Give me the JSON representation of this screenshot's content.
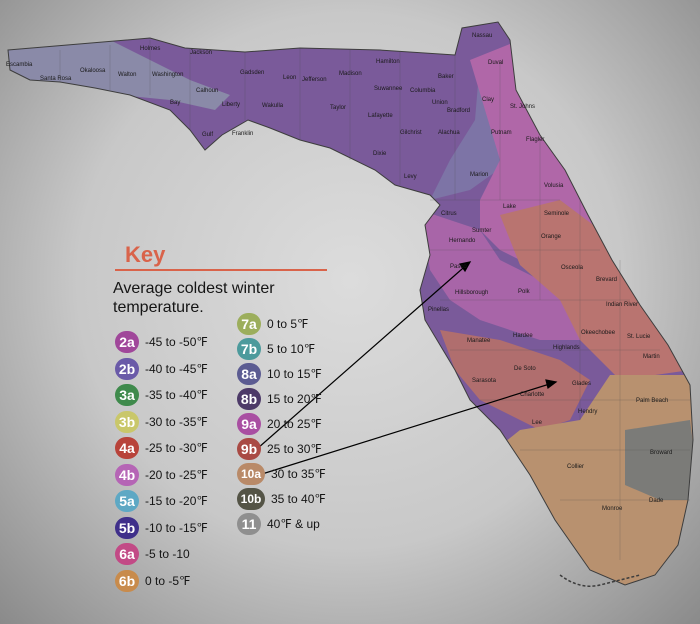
{
  "key": {
    "title": "Key",
    "subtitle": "Average coldest winter temperature.",
    "zones": [
      {
        "zone": "2a",
        "range": "-45 to -50℉",
        "color": "#a0479a"
      },
      {
        "zone": "2b",
        "range": "-40 to -45℉",
        "color": "#6a5aa8"
      },
      {
        "zone": "3a",
        "range": "-35 to -40℉",
        "color": "#3f8a4c"
      },
      {
        "zone": "3b",
        "range": "-30 to -35℉",
        "color": "#c9c76a"
      },
      {
        "zone": "4a",
        "range": "-25 to -30℉",
        "color": "#b8433a"
      },
      {
        "zone": "4b",
        "range": "-20 to -25℉",
        "color": "#b565b5"
      },
      {
        "zone": "5a",
        "range": "-15 to -20℉",
        "color": "#5ea8c4"
      },
      {
        "zone": "5b",
        "range": "-10 to -15℉",
        "color": "#3f2f8a"
      },
      {
        "zone": "6a",
        "range": "-5 to -10",
        "color": "#c24a86"
      },
      {
        "zone": "6b",
        "range": "0 to -5℉",
        "color": "#c88b4c"
      },
      {
        "zone": "7a",
        "range": "0 to 5℉",
        "color": "#9cae5c"
      },
      {
        "zone": "7b",
        "range": "5 to 10℉",
        "color": "#4c9a9c"
      },
      {
        "zone": "8a",
        "range": "10 to 15℉",
        "color": "#5c5c92"
      },
      {
        "zone": "8b",
        "range": "15 to 20℉",
        "color": "#4d3a68"
      },
      {
        "zone": "9a",
        "range": "20 to 25℉",
        "color": "#a94fa2"
      },
      {
        "zone": "9b",
        "range": "25 to 30℉",
        "color": "#a94a44"
      },
      {
        "zone": "10a",
        "range": "30 to 35℉",
        "color": "#b98a68"
      },
      {
        "zone": "10b",
        "range": "35 to 40℉",
        "color": "#545446"
      },
      {
        "zone": "11",
        "range": "40℉ & up",
        "color": "#8f8f8f"
      }
    ]
  },
  "counties": [
    "Escambia",
    "Santa Rosa",
    "Okaloosa",
    "Walton",
    "Holmes",
    "Washington",
    "Jackson",
    "Calhoun",
    "Bay",
    "Gulf",
    "Liberty",
    "Franklin",
    "Gadsden",
    "Wakulla",
    "Leon",
    "Jefferson",
    "Madison",
    "Taylor",
    "Hamilton",
    "Suwannee",
    "Lafayette",
    "Columbia",
    "Baker",
    "Nassau",
    "Duval",
    "Union",
    "Bradford",
    "Clay",
    "St. Johns",
    "Dixie",
    "Gilchrist",
    "Alachua",
    "Putnam",
    "Flagler",
    "Levy",
    "Marion",
    "Volusia",
    "Citrus",
    "Sumter",
    "Lake",
    "Hernando",
    "Pasco",
    "Seminole",
    "Orange",
    "Osceola",
    "Brevard",
    "Hillsborough",
    "Polk",
    "Pinellas",
    "Indian River",
    "Manatee",
    "Hardee",
    "Okeechobee",
    "St. Lucie",
    "Highlands",
    "Martin",
    "Sarasota",
    "De Soto",
    "Glades",
    "Charlotte",
    "Palm Beach",
    "Hendry",
    "Lee",
    "Broward",
    "Collier",
    "Dade",
    "Monroe"
  ]
}
